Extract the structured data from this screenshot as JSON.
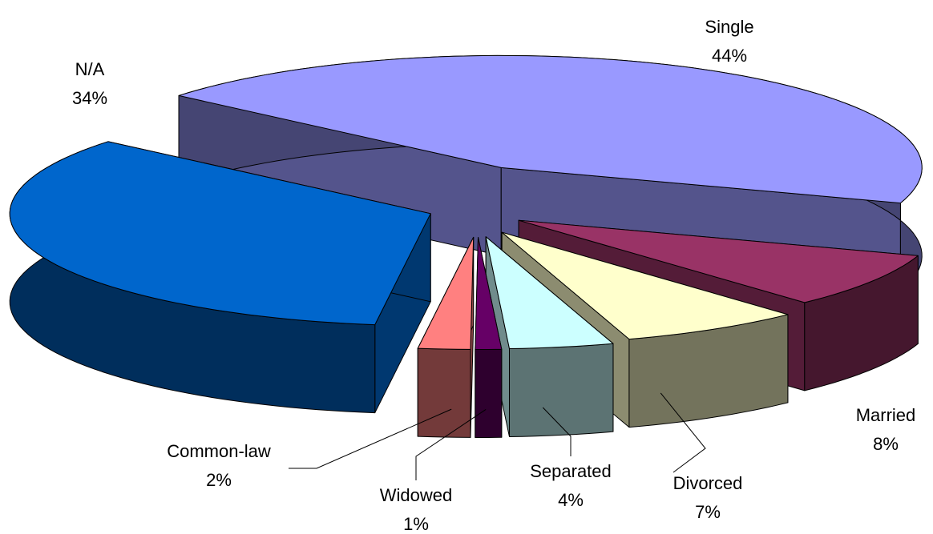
{
  "chart_data": {
    "type": "pie",
    "categories": [
      "Single",
      "Married",
      "Divorced",
      "Separated",
      "Widowed",
      "Common-law",
      "N/A"
    ],
    "values": [
      44,
      8,
      7,
      4,
      1,
      2,
      34
    ],
    "value_labels": [
      "44%",
      "8%",
      "7%",
      "4%",
      "1%",
      "2%",
      "34%"
    ],
    "colors": [
      "#9999ff",
      "#993366",
      "#ffffcc",
      "#ccffff",
      "#660066",
      "#ff8080",
      "#0066cc"
    ]
  }
}
